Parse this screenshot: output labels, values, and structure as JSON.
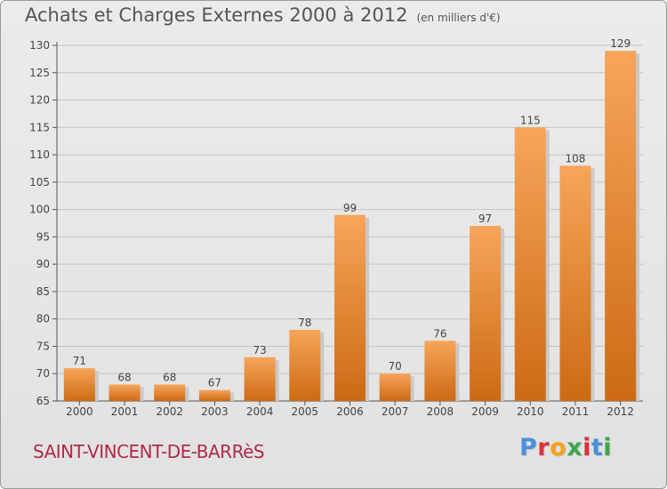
{
  "header": {
    "title": "Achats et Charges Externes 2000 à 2012",
    "subtitle": "(en milliers d'€)"
  },
  "footer": {
    "commune": "SAINT-VINCENT-DE-BARRèS",
    "logo_text": "Proxiti",
    "logo_colors": [
      "#4a90d9",
      "#e0303b",
      "#f4a31a",
      "#3aa64c",
      "#e0303b",
      "#4a90d9",
      "#3aa64c"
    ]
  },
  "colors": {
    "bar_top": "#f6a55a",
    "bar_bottom": "#cc6a14",
    "bar_shadow": "#c9c9c9"
  },
  "chart_data": {
    "type": "bar",
    "title": "Achats et Charges Externes 2000 à 2012",
    "subtitle": "(en milliers d'€)",
    "xlabel": "",
    "ylabel": "",
    "categories": [
      "2000",
      "2001",
      "2002",
      "2003",
      "2004",
      "2005",
      "2006",
      "2007",
      "2008",
      "2009",
      "2010",
      "2011",
      "2012"
    ],
    "values": [
      71,
      68,
      68,
      67,
      73,
      78,
      99,
      70,
      76,
      97,
      115,
      108,
      129
    ],
    "ylim": [
      65,
      130
    ],
    "yticks": [
      65,
      70,
      75,
      80,
      85,
      90,
      95,
      100,
      105,
      110,
      115,
      120,
      125,
      130
    ],
    "grid": true,
    "data_labels": true
  }
}
